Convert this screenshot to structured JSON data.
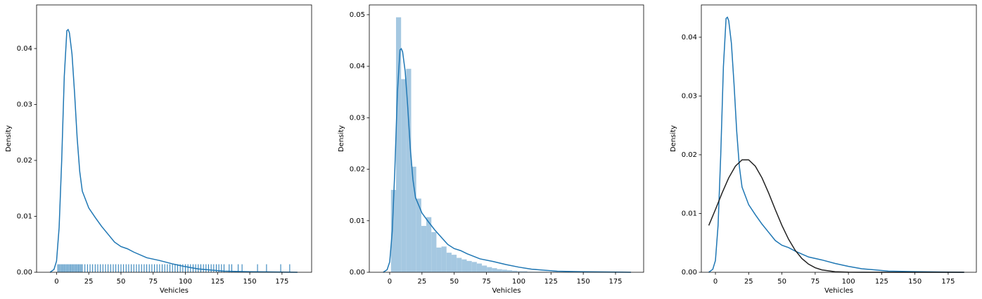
{
  "chart_data": [
    {
      "type": "kde",
      "xlabel": "Vehicles",
      "ylabel": "Density",
      "xlim": [
        -15.5,
        198
      ],
      "ylim": [
        0,
        0.0478
      ],
      "xticks": [
        0,
        25,
        50,
        75,
        100,
        125,
        150,
        175
      ],
      "yticks": [
        {
          "value": 0,
          "label": "0.00"
        },
        0.01,
        0.02,
        0.03,
        0.04
      ],
      "series": [
        {
          "color": "#1f77b4",
          "x": [
            -5,
            -2,
            0,
            2,
            4,
            6,
            8,
            9,
            10,
            12,
            14,
            16,
            18,
            20,
            25,
            30,
            35,
            40,
            45,
            50,
            55,
            60,
            70,
            80,
            90,
            100,
            110,
            120,
            130,
            150,
            170,
            187
          ],
          "values": [
            0,
            0.0005,
            0.002,
            0.008,
            0.02,
            0.035,
            0.0432,
            0.0434,
            0.0428,
            0.039,
            0.032,
            0.024,
            0.018,
            0.0145,
            0.0115,
            0.0098,
            0.0082,
            0.0068,
            0.0054,
            0.0046,
            0.0042,
            0.0036,
            0.0026,
            0.0021,
            0.0015,
            0.001,
            0.0006,
            0.0004,
            0.0002,
            0.0001,
            5e-05,
            0
          ]
        }
      ],
      "rug": {
        "color": "#1f77b4",
        "values": [
          1,
          2,
          3,
          4,
          5,
          6,
          7,
          8,
          9,
          10,
          11,
          12,
          13,
          14,
          15,
          16,
          17,
          18,
          19,
          20,
          22,
          24,
          26,
          28,
          30,
          32,
          34,
          36,
          38,
          40,
          42,
          44,
          46,
          48,
          50,
          52,
          54,
          56,
          58,
          60,
          62,
          64,
          66,
          68,
          70,
          72,
          74,
          76,
          78,
          80,
          82,
          84,
          86,
          88,
          90,
          92,
          94,
          96,
          98,
          100,
          102,
          104,
          106,
          108,
          110,
          112,
          114,
          116,
          118,
          120,
          122,
          124,
          126,
          128,
          130,
          134,
          136,
          141,
          144,
          156,
          163,
          174,
          181
        ]
      }
    },
    {
      "type": "histogram",
      "xlabel": "Vehicles",
      "ylabel": "Density",
      "xlim": [
        -15.8,
        196.8
      ],
      "ylim": [
        0,
        0.0519
      ],
      "xticks": [
        0,
        25,
        50,
        75,
        100,
        125,
        150,
        175
      ],
      "yticks": [
        {
          "value": 0,
          "label": "0.00"
        },
        0.01,
        0.02,
        0.03,
        0.04,
        0.05
      ],
      "color": "#a5c8e1",
      "bins": [
        1,
        4.91,
        8.83,
        12.74,
        16.65,
        20.57,
        24.48,
        28.39,
        32.3,
        36.22,
        40.13,
        44.04,
        47.96,
        51.87,
        55.78,
        59.7,
        63.61,
        67.52,
        71.43,
        75.35,
        79.26,
        83.17,
        87.09,
        91,
        94.91,
        98.83,
        102.74,
        106.65,
        110.57,
        114.48,
        118.39,
        122.3,
        126.22,
        130.13,
        134.04,
        137.96,
        141.87,
        145.78,
        149.7,
        153.61,
        157.52,
        161.43,
        165.35,
        169.26,
        173.17,
        177.09,
        181
      ],
      "values": [
        0.016,
        0.0495,
        0.0375,
        0.0395,
        0.0205,
        0.0143,
        0.009,
        0.0107,
        0.0078,
        0.0048,
        0.005,
        0.0038,
        0.0034,
        0.0028,
        0.0025,
        0.0022,
        0.002,
        0.0017,
        0.0013,
        0.001,
        0.0008,
        0.0006,
        0.0005,
        0.0004,
        0.0003,
        0.0002,
        0.0002,
        0.0001,
        0.0001,
        0.0001,
        0.0001,
        0,
        0.0001,
        0,
        0,
        0.0001,
        0,
        0,
        0,
        0,
        0.0001,
        0,
        0,
        0,
        0.0001,
        0.0001
      ],
      "series": [
        {
          "color": "#1f77b4",
          "x": [
            -5,
            -2,
            0,
            2,
            4,
            6,
            8,
            9,
            10,
            12,
            14,
            16,
            18,
            20,
            25,
            30,
            35,
            40,
            45,
            50,
            55,
            60,
            70,
            80,
            90,
            100,
            110,
            120,
            130,
            150,
            170,
            187
          ],
          "values": [
            0,
            0.0005,
            0.002,
            0.008,
            0.02,
            0.035,
            0.0432,
            0.0434,
            0.0428,
            0.039,
            0.032,
            0.024,
            0.018,
            0.0145,
            0.0115,
            0.0098,
            0.0082,
            0.0068,
            0.0054,
            0.0046,
            0.0042,
            0.0036,
            0.0026,
            0.0021,
            0.0015,
            0.001,
            0.0006,
            0.0004,
            0.0002,
            0.0001,
            5e-05,
            0
          ]
        }
      ]
    },
    {
      "type": "kde",
      "xlabel": "Vehicles",
      "ylabel": "Density",
      "xlim": [
        -10.6,
        196.2
      ],
      "ylim": [
        0,
        0.0455
      ],
      "xticks": [
        0,
        25,
        50,
        75,
        100,
        125,
        150,
        175
      ],
      "yticks": [
        {
          "value": 0,
          "label": "0.00"
        },
        0.01,
        0.02,
        0.03,
        0.04
      ],
      "series": [
        {
          "color": "#1f77b4",
          "x": [
            -5,
            -2,
            0,
            2,
            4,
            6,
            8,
            9,
            10,
            12,
            14,
            16,
            18,
            20,
            25,
            30,
            35,
            40,
            45,
            50,
            55,
            60,
            70,
            80,
            90,
            100,
            110,
            120,
            130,
            150,
            170,
            187
          ],
          "values": [
            0,
            0.0005,
            0.002,
            0.008,
            0.02,
            0.035,
            0.0432,
            0.0434,
            0.0428,
            0.039,
            0.032,
            0.024,
            0.018,
            0.0145,
            0.0115,
            0.0098,
            0.0082,
            0.0068,
            0.0054,
            0.0046,
            0.0042,
            0.0036,
            0.0026,
            0.0021,
            0.0015,
            0.001,
            0.0006,
            0.0004,
            0.0002,
            0.0001,
            5e-05,
            0
          ]
        },
        {
          "color": "#222222",
          "x": [
            -5,
            0,
            5,
            10,
            15,
            20,
            25,
            30,
            35,
            40,
            45,
            50,
            55,
            60,
            65,
            70,
            75,
            80,
            90,
            100,
            110,
            125,
            150,
            187
          ],
          "values": [
            0.00797,
            0.01067,
            0.01349,
            0.01607,
            0.01805,
            0.01913,
            0.01913,
            0.01805,
            0.01607,
            0.01349,
            0.01067,
            0.00797,
            0.00562,
            0.00373,
            0.00234,
            0.00139,
            0.00077,
            0.00041,
            9.5e-05,
            1.7e-05,
            2e-06,
            0,
            0,
            0
          ]
        }
      ]
    }
  ]
}
